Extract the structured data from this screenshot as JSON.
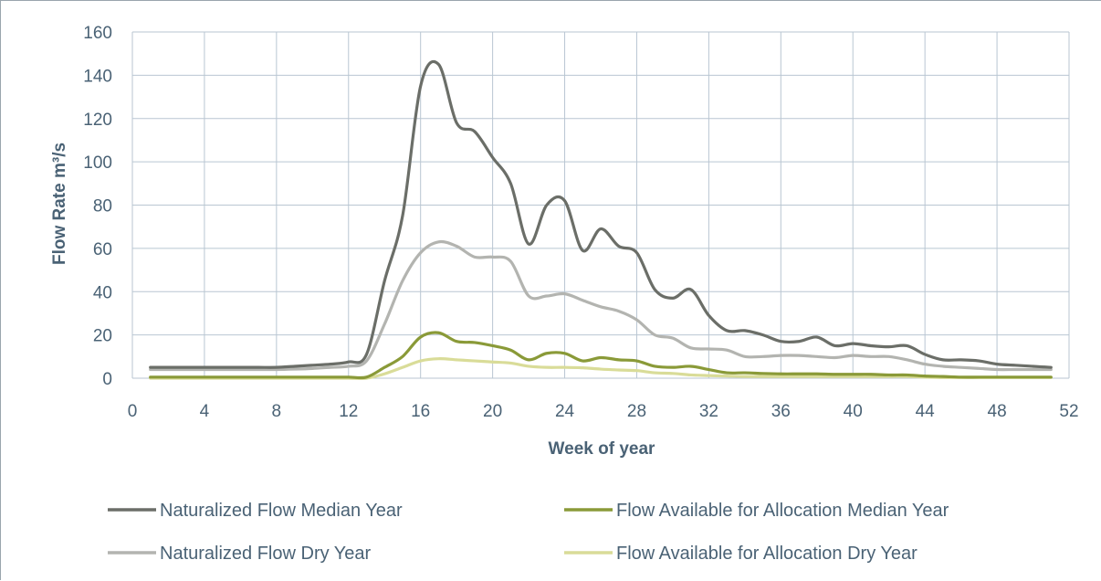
{
  "chart_data": {
    "type": "line",
    "xlabel": "Week of year",
    "ylabel": "Flow Rate m³/s",
    "xlim": [
      0,
      52
    ],
    "ylim": [
      0,
      160
    ],
    "x_ticks": [
      "0",
      "4",
      "8",
      "12",
      "16",
      "20",
      "24",
      "28",
      "32",
      "36",
      "40",
      "44",
      "48",
      "52"
    ],
    "y_ticks": [
      "0",
      "20",
      "40",
      "60",
      "80",
      "100",
      "120",
      "140",
      "160"
    ],
    "grid": true,
    "legend_position": "bottom",
    "x": [
      1,
      2,
      3,
      4,
      5,
      6,
      7,
      8,
      9,
      10,
      11,
      12,
      13,
      14,
      15,
      16,
      17,
      18,
      19,
      20,
      21,
      22,
      23,
      24,
      25,
      26,
      27,
      28,
      29,
      30,
      31,
      32,
      33,
      34,
      35,
      36,
      37,
      38,
      39,
      40,
      41,
      42,
      43,
      44,
      45,
      46,
      47,
      48,
      49,
      50,
      51
    ],
    "series": [
      {
        "name": "Naturalized Flow Median Year",
        "color": "#6b6e68",
        "values": [
          5,
          5,
          5,
          5,
          5,
          5,
          5,
          5,
          5.5,
          6,
          6.5,
          7.5,
          11,
          45,
          75,
          135,
          145,
          118,
          114,
          102,
          90,
          62,
          80,
          82,
          59,
          69,
          61,
          58,
          41,
          37,
          41,
          29,
          22,
          22,
          20,
          17,
          17,
          19,
          15,
          16,
          15,
          14.5,
          15,
          11,
          8.5,
          8.5,
          8,
          6.5,
          6,
          5.5,
          5
        ]
      },
      {
        "name": "Naturalized Flow Dry Year",
        "color": "#b3b4b0",
        "values": [
          4,
          4,
          4,
          4,
          4,
          4,
          4,
          4,
          4.2,
          4.5,
          5,
          5.5,
          8,
          25,
          45,
          58,
          63,
          61,
          56,
          56,
          54,
          38,
          38,
          39,
          36,
          33,
          31,
          27,
          20,
          18.5,
          14,
          13.5,
          13,
          10,
          10,
          10.5,
          10.5,
          10,
          9.5,
          10.5,
          10,
          10,
          8.5,
          6.5,
          5.5,
          5,
          4.5,
          4,
          4,
          4,
          4
        ]
      },
      {
        "name": "Flow Available for Allocation Median Year",
        "color": "#8a9a38",
        "values": [
          0.5,
          0.5,
          0.5,
          0.5,
          0.5,
          0.5,
          0.5,
          0.5,
          0.5,
          0.5,
          0.5,
          0.5,
          0.5,
          5,
          10,
          19,
          21,
          17,
          16.5,
          15,
          13,
          8.5,
          11.5,
          11.5,
          8,
          9.5,
          8.5,
          8,
          5.5,
          5,
          5.5,
          4,
          2.5,
          2.5,
          2.2,
          2,
          2,
          2,
          1.8,
          1.8,
          1.8,
          1.5,
          1.5,
          1,
          0.8,
          0.5,
          0.5,
          0.5,
          0.5,
          0.5,
          0.5
        ]
      },
      {
        "name": "Flow Available for Allocation Dry Year",
        "color": "#d9dc98",
        "values": [
          0,
          0,
          0,
          0,
          0,
          0,
          0,
          0,
          0,
          0,
          0,
          0,
          0,
          2,
          5,
          8,
          9,
          8.5,
          8,
          7.5,
          7,
          5.5,
          5,
          5,
          4.8,
          4.2,
          3.8,
          3.5,
          2.5,
          2.2,
          1.5,
          1.2,
          1,
          0.8,
          0.8,
          0.8,
          0.8,
          0.8,
          0.8,
          0.8,
          0.8,
          0.8,
          0.8,
          0.5,
          0.3,
          0.3,
          0.3,
          0.3,
          0.3,
          0.3,
          0.3
        ]
      }
    ]
  }
}
